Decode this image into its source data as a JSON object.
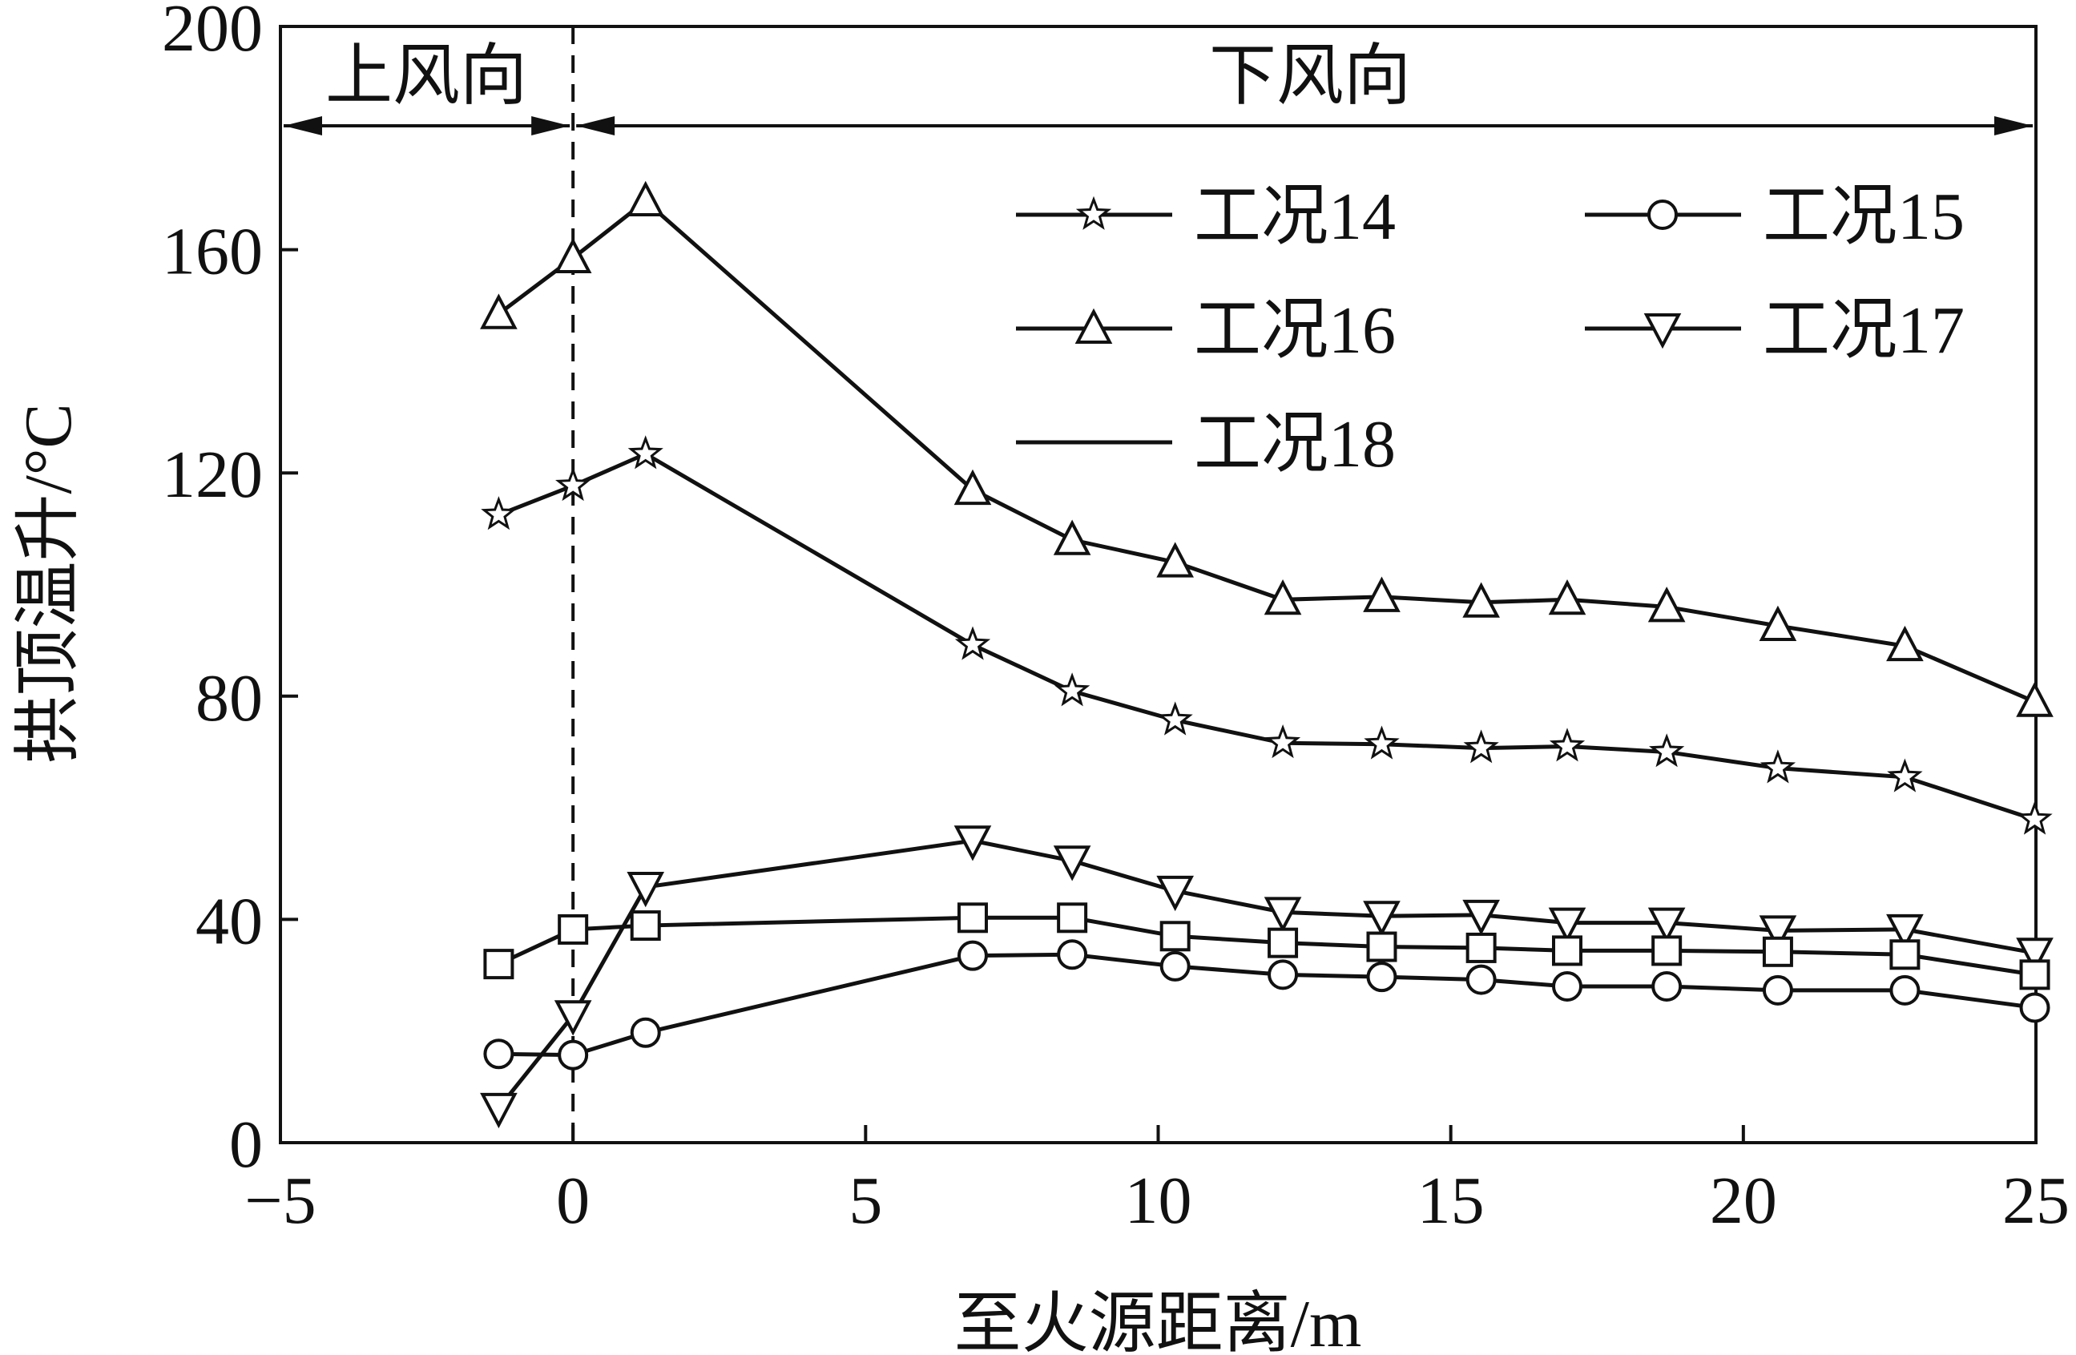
{
  "chart_data": {
    "type": "line",
    "xlabel": "至火源距离/m",
    "ylabel": "拱顶温升/°C",
    "xlim": [
      -5,
      25
    ],
    "ylim": [
      0,
      200
    ],
    "xticks": [
      -5,
      0,
      5,
      10,
      15,
      20,
      25
    ],
    "yticks": [
      0,
      40,
      80,
      120,
      160,
      200
    ],
    "xtick_labels": [
      "−5",
      "0",
      "5",
      "10",
      "15",
      "20",
      "25"
    ],
    "ytick_labels": [
      "0",
      "40",
      "80",
      "120",
      "160",
      "200"
    ],
    "grid": false,
    "legend_placement": "top-right",
    "annotations": {
      "upwind": "上风向",
      "downwind": "下风向",
      "divider_x": 0
    },
    "x": [
      -1.27,
      0,
      1.24,
      6.83,
      8.53,
      10.29,
      12.13,
      13.82,
      15.52,
      16.99,
      18.69,
      20.59,
      22.76,
      24.98
    ],
    "series": [
      {
        "name": "工况14",
        "marker": "star",
        "values": [
          112.5,
          117.7,
          123.4,
          89.2,
          80.9,
          75.7,
          71.6,
          71.4,
          70.7,
          71.0,
          70.0,
          67.1,
          65.5,
          57.9
        ]
      },
      {
        "name": "工况15",
        "marker": "circle",
        "values": [
          15.9,
          15.7,
          19.7,
          33.5,
          33.7,
          31.6,
          30.1,
          29.7,
          29.2,
          28.0,
          28.0,
          27.3,
          27.3,
          24.2
        ]
      },
      {
        "name": "工况16",
        "marker": "triangle-up",
        "values": [
          148.5,
          158.5,
          168.7,
          117.0,
          108.0,
          104.0,
          97.3,
          97.8,
          96.8,
          97.3,
          96.0,
          92.6,
          89.0,
          79.0
        ]
      },
      {
        "name": "工况17",
        "marker": "triangle-down",
        "values": [
          6.2,
          22.8,
          45.8,
          54.1,
          50.5,
          45.1,
          41.3,
          40.6,
          40.8,
          39.4,
          39.4,
          38.0,
          38.2,
          34.0
        ]
      },
      {
        "name": "工况18",
        "marker": "square",
        "legend_marker": "none",
        "values": [
          32.0,
          38.2,
          38.9,
          40.3,
          40.3,
          37.0,
          35.8,
          35.1,
          34.9,
          34.4,
          34.4,
          34.2,
          33.7,
          30.1
        ]
      }
    ],
    "colors": {
      "line": "#111111",
      "marker_fill": "#ffffff"
    }
  }
}
